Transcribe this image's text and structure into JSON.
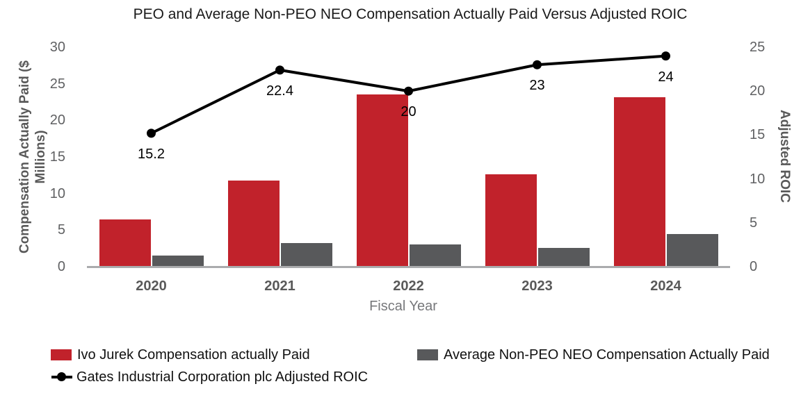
{
  "chart_data": {
    "type": "combo",
    "title": "PEO and Average Non-PEO NEO Compensation Actually Paid Versus Adjusted ROIC",
    "categories": [
      "2020",
      "2021",
      "2022",
      "2023",
      "2024"
    ],
    "series": [
      {
        "name": "Ivo Jurek Compensation actually Paid",
        "type": "bar",
        "axis": "left",
        "color": "#c1222b",
        "values": [
          6.5,
          11.8,
          23.5,
          12.6,
          23.2
        ]
      },
      {
        "name": "Average Non-PEO NEO Compensation Actually Paid",
        "type": "bar",
        "axis": "left",
        "color": "#58595b",
        "values": [
          1.5,
          3.2,
          3.0,
          2.6,
          4.5
        ]
      },
      {
        "name": "Gates Industrial Corporation plc Adjusted ROIC",
        "type": "line",
        "axis": "right",
        "color": "#000000",
        "values": [
          15.2,
          22.4,
          20,
          23,
          24
        ],
        "data_labels": [
          "15.2",
          "22.4",
          "20",
          "23",
          "24"
        ]
      }
    ],
    "xlabel": "Fiscal Year",
    "ylabel_left": "Compensation Actually Paid ($ Millions)",
    "ylabel_right": "Adjusted ROIC",
    "ylim_left": [
      0,
      30
    ],
    "yticks_left": [
      0,
      5,
      10,
      15,
      20,
      25,
      30
    ],
    "ylim_right": [
      0,
      25
    ],
    "yticks_right": [
      0,
      5,
      10,
      15,
      20,
      25
    ],
    "grid": false,
    "legend_position": "bottom"
  }
}
